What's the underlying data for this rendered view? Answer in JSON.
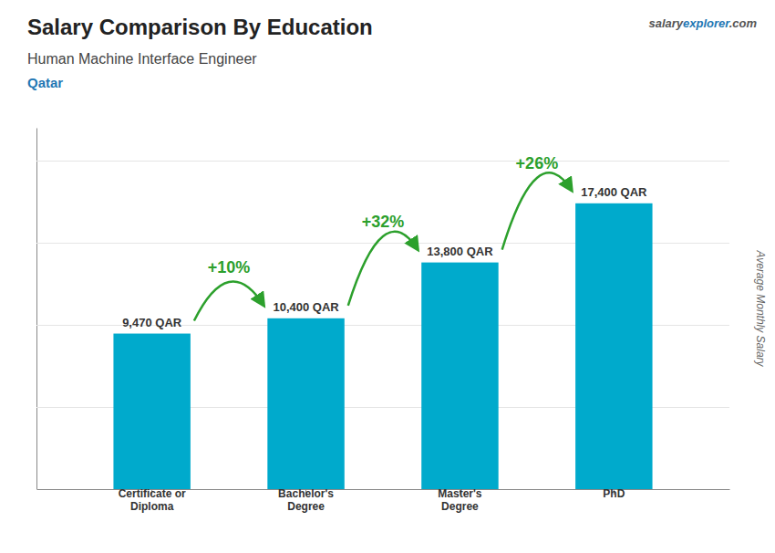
{
  "chart_data": {
    "type": "bar",
    "title": "Salary Comparison By Education",
    "subtitle": [
      "Human Machine Interface Engineer",
      "Qatar"
    ],
    "watermark": [
      "salary",
      "explorer",
      ".com"
    ],
    "ylabel": "Average Monthly Salary",
    "categories": [
      "Certificate or\nDiploma",
      "Bachelor's\nDegree",
      "Master's\nDegree",
      "PhD"
    ],
    "values": [
      9470,
      10400,
      13800,
      17400
    ],
    "value_labels": [
      "9,470 QAR",
      "10,400 QAR",
      "13,800 QAR",
      "17,400 QAR"
    ],
    "data_labels": true,
    "annotations": [
      {
        "from": 0,
        "to": 1,
        "text": "+10%"
      },
      {
        "from": 1,
        "to": 2,
        "text": "+32%"
      },
      {
        "from": 2,
        "to": 3,
        "text": "+26%"
      }
    ],
    "color": "#00AACC",
    "ylim": [
      0,
      22000
    ],
    "yticks": [
      0,
      5000,
      10000,
      15000,
      20000
    ],
    "grid": true,
    "tick_labels": "x"
  }
}
